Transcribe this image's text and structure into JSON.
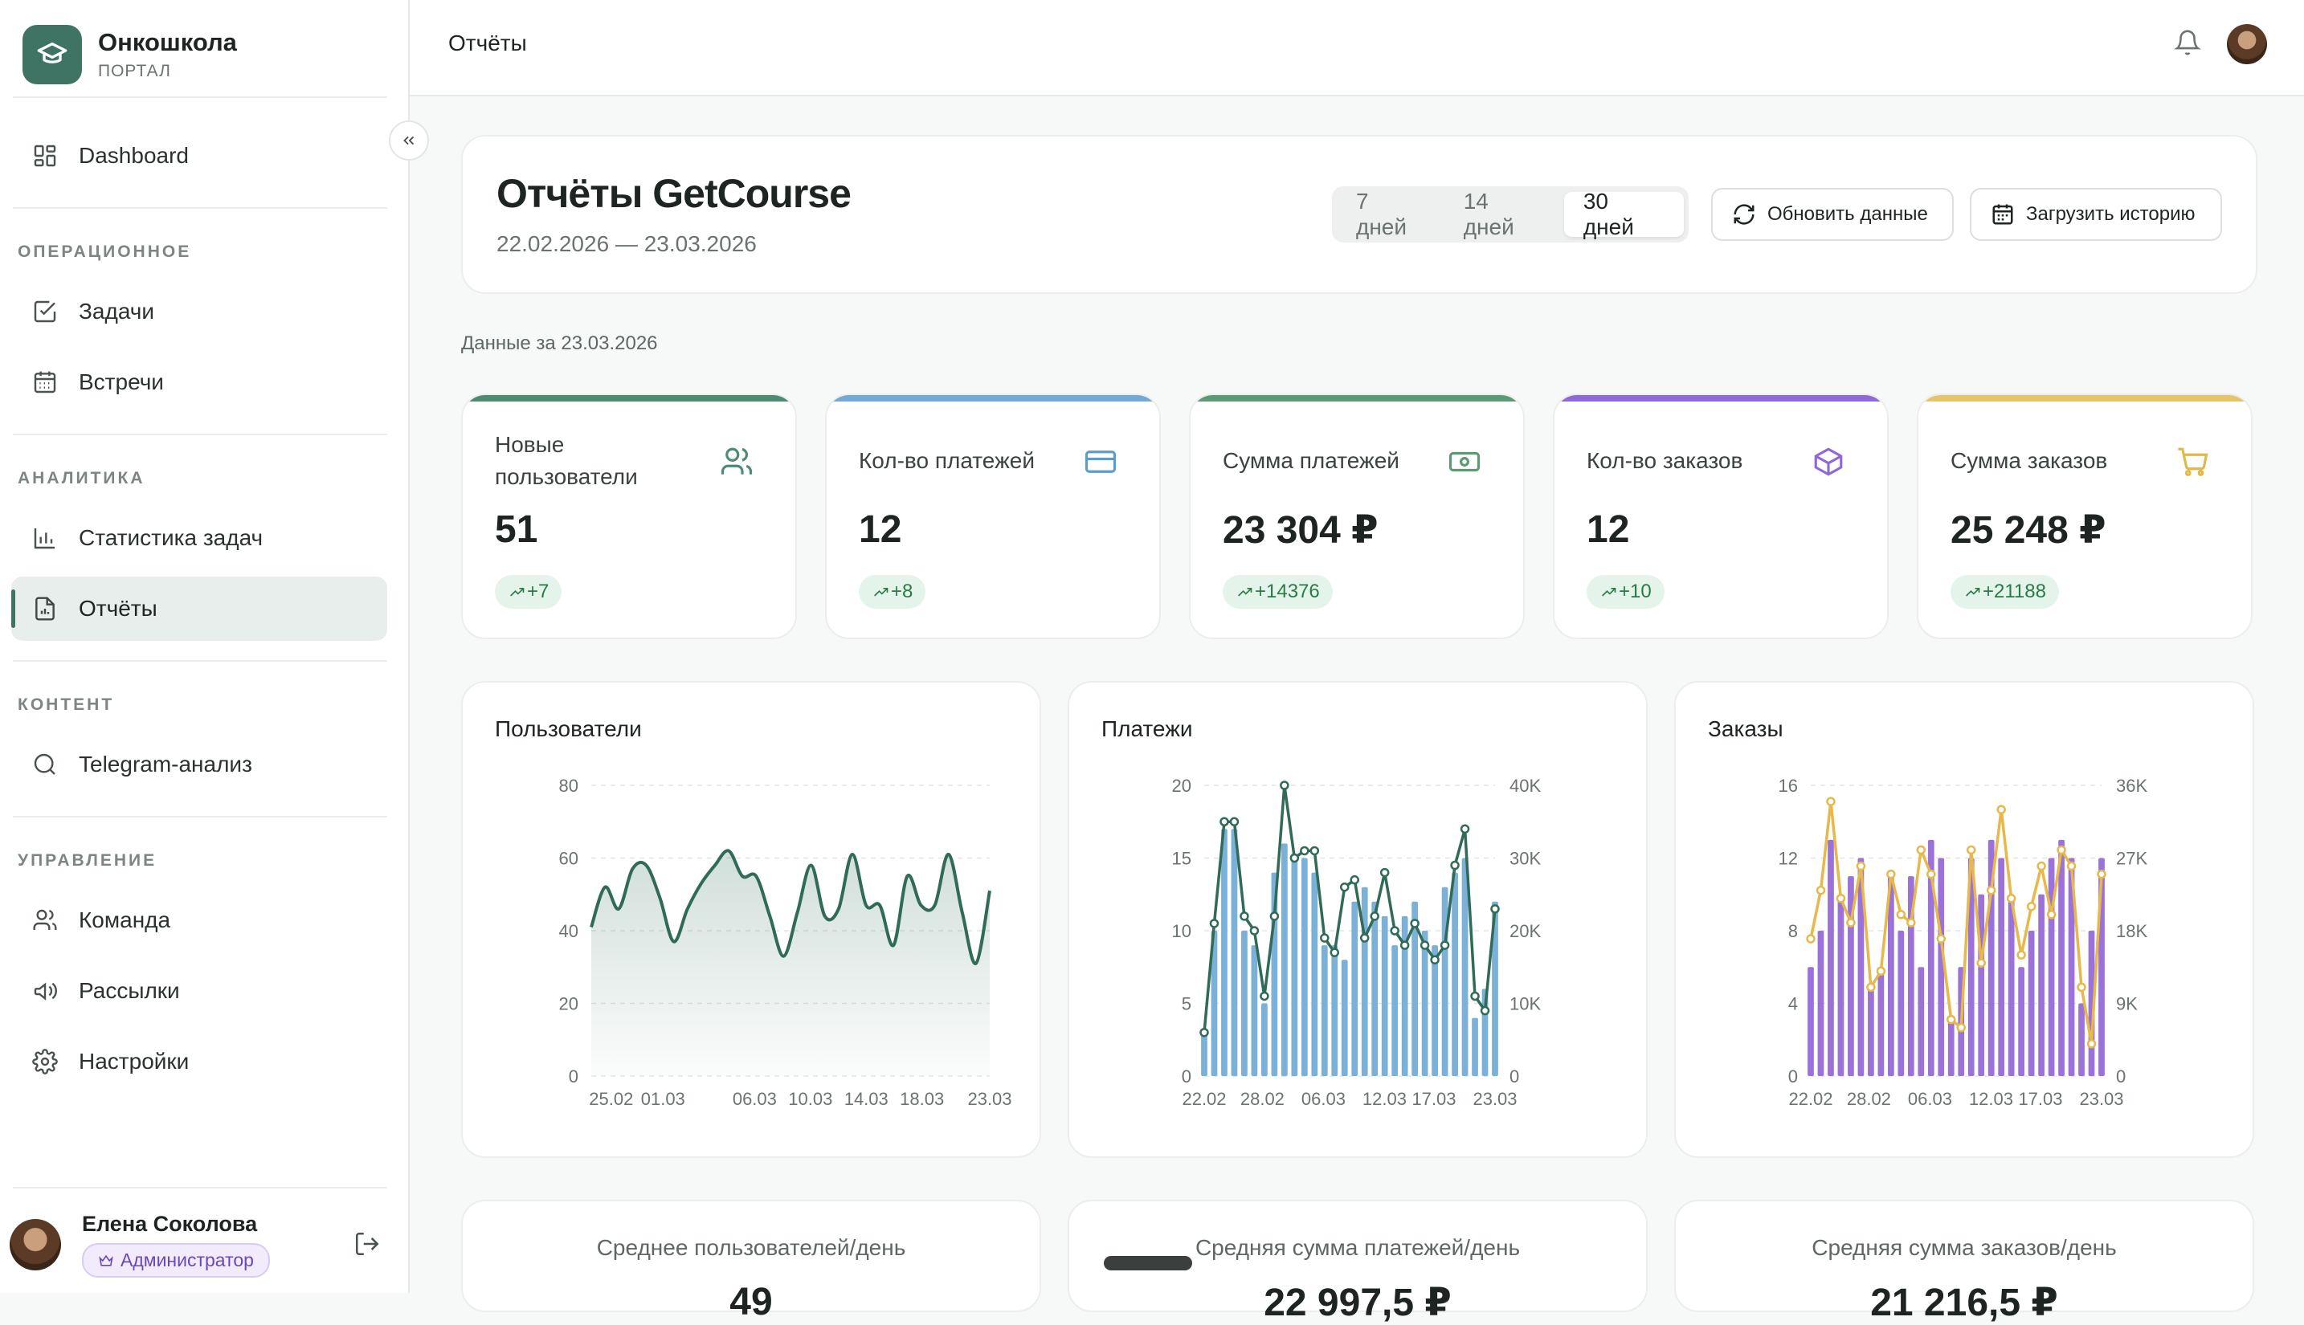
{
  "sidebar": {
    "brand_name": "Онкошкола",
    "brand_sub": "ПОРТАЛ",
    "dashboard": "Dashboard",
    "section_ops": "ОПЕРАЦИОННОЕ",
    "tasks": "Задачи",
    "meetings": "Встречи",
    "section_analytics": "АНАЛИТИКА",
    "task_stats": "Статистика задач",
    "reports": "Отчёты",
    "section_content": "КОНТЕНТ",
    "telegram": "Telegram-анализ",
    "section_manage": "УПРАВЛЕНИЕ",
    "team": "Команда",
    "mailings": "Рассылки",
    "settings": "Настройки",
    "user_name": "Елена Соколова",
    "user_role": "Администратор"
  },
  "header": {
    "title": "Отчёты"
  },
  "report": {
    "title": "Отчёты GetCourse",
    "range": "22.02.2026 — 23.03.2026",
    "periods": [
      "7 дней",
      "14 дней",
      "30 дней"
    ],
    "selected_period": "30 дней",
    "refresh_label": "Обновить данные",
    "load_history_label": "Загрузить историю",
    "data_date": "Данные за 23.03.2026"
  },
  "kpis": [
    {
      "label": "Новые пользователи",
      "value": "51",
      "delta": "+7",
      "color": "#4f8a73",
      "icon": "users-icon"
    },
    {
      "label": "Кол-во платежей",
      "value": "12",
      "delta": "+8",
      "color": "#72a9d6",
      "icon": "credit-card-icon"
    },
    {
      "label": "Сумма платежей",
      "value": "23 304 ₽",
      "delta": "+14376",
      "color": "#5b9a74",
      "icon": "banknote-icon"
    },
    {
      "label": "Кол-во заказов",
      "value": "12",
      "delta": "+10",
      "color": "#8e6ad8",
      "icon": "box-icon"
    },
    {
      "label": "Сумма заказов",
      "value": "25 248 ₽",
      "delta": "+21188",
      "color": "#e6c46a",
      "icon": "cart-icon"
    }
  ],
  "averages": [
    {
      "label": "Среднее пользователей/день",
      "value": "49"
    },
    {
      "label": "Средняя сумма платежей/день",
      "value": "22 997,5 ₽"
    },
    {
      "label": "Средняя сумма заказов/день",
      "value": "21 216,5 ₽"
    }
  ],
  "colors": {
    "accent": "#3f7464",
    "users_line": "#2f6b56",
    "payments_bar": "#7bb0d9",
    "payments_line": "#2f6b56",
    "orders_bar": "#9b72d9",
    "orders_line": "#e7b84a"
  },
  "chart_data": [
    {
      "type": "area",
      "title": "Пользователи",
      "x_ticks": [
        "25.02",
        "01.03",
        "06.03",
        "10.03",
        "14.03",
        "18.03",
        "23.03"
      ],
      "ylim": [
        0,
        80
      ],
      "y_ticks": [
        0,
        20,
        40,
        60,
        80
      ],
      "grid": true,
      "series": [
        {
          "values": [
            41,
            52,
            46,
            57,
            58,
            49,
            37,
            46,
            53,
            58,
            62,
            55,
            55,
            44,
            33,
            45,
            58,
            44,
            46,
            61,
            47,
            47,
            36,
            55,
            47,
            47,
            61,
            45,
            31,
            51
          ]
        }
      ]
    },
    {
      "type": "bar",
      "title": "Платежи",
      "x_ticks": [
        "22.02",
        "28.02",
        "06.03",
        "12.03",
        "17.03",
        "23.03"
      ],
      "ylim": [
        0,
        20
      ],
      "y_ticks": [
        0,
        5,
        10,
        15,
        20
      ],
      "y2lim": [
        0,
        40000
      ],
      "y2_ticks": [
        "0",
        "10K",
        "20K",
        "30K",
        "40K"
      ],
      "grid": true,
      "series": [
        {
          "type": "bar",
          "axis": "left",
          "values": [
            3,
            10,
            17,
            17,
            10,
            9,
            5,
            14,
            16,
            15,
            15,
            14,
            9,
            9,
            8,
            12,
            13,
            12,
            11,
            9,
            11,
            12,
            10,
            9,
            13,
            14,
            15,
            4,
            6,
            12
          ]
        },
        {
          "type": "line",
          "axis": "right",
          "values": [
            6000,
            21000,
            35000,
            35000,
            22000,
            20000,
            11000,
            22000,
            40000,
            30000,
            31000,
            31000,
            19000,
            17000,
            26000,
            27000,
            19000,
            22000,
            28000,
            20000,
            18000,
            21000,
            18000,
            16000,
            18000,
            29000,
            34000,
            11000,
            9000,
            23000
          ]
        }
      ]
    },
    {
      "type": "bar",
      "title": "Заказы",
      "x_ticks": [
        "22.02",
        "28.02",
        "06.03",
        "12.03",
        "17.03",
        "23.03"
      ],
      "ylim": [
        0,
        16
      ],
      "y_ticks": [
        0,
        4,
        8,
        12,
        16
      ],
      "y2lim": [
        0,
        36000
      ],
      "y2_ticks": [
        "0",
        "9K",
        "18K",
        "27K",
        "36K"
      ],
      "grid": true,
      "series": [
        {
          "type": "bar",
          "axis": "left",
          "values": [
            6,
            8,
            13,
            10,
            11,
            12,
            5,
            6,
            11,
            8,
            11,
            6,
            13,
            12,
            3,
            6,
            12,
            10,
            13,
            12,
            10,
            6,
            8,
            10,
            12,
            13,
            12,
            4,
            8,
            12
          ]
        },
        {
          "type": "line",
          "axis": "right",
          "values": [
            17000,
            23000,
            34000,
            22000,
            19000,
            26000,
            11000,
            13000,
            25000,
            20000,
            19000,
            28000,
            25000,
            17000,
            7000,
            6000,
            28000,
            14000,
            23000,
            33000,
            22000,
            15000,
            21000,
            26000,
            20000,
            28000,
            26000,
            11000,
            4000,
            25000
          ]
        }
      ]
    }
  ]
}
